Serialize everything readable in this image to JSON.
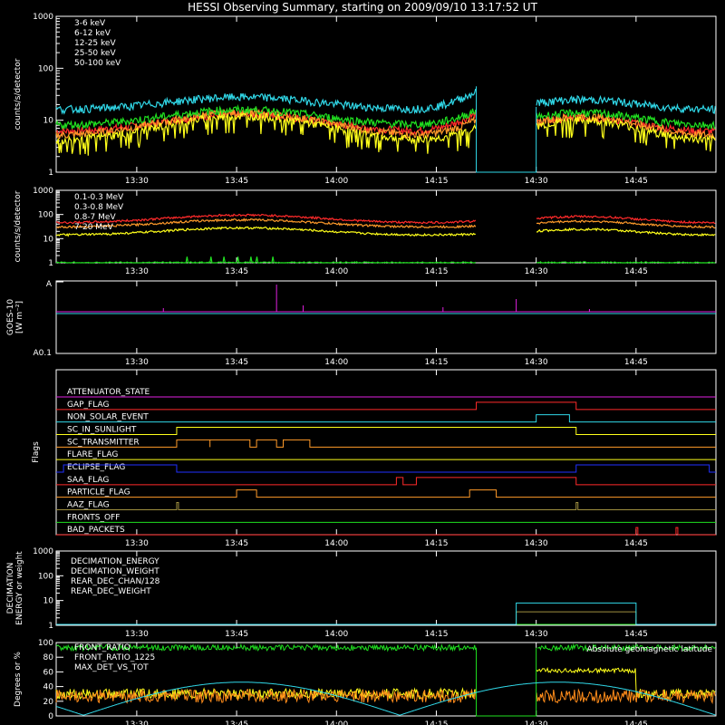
{
  "title": "HESSI Observing Summary, starting on 2009/09/10 13:17:52 UT",
  "colors": {
    "red": "#ff2a2a",
    "orange": "#ff9a2a",
    "yellow": "#ffff1a",
    "green": "#20e020",
    "cyan": "#30d8e8",
    "magenta": "#e020e0",
    "blue": "#2030ff",
    "olive": "#a09040",
    "orange2": "#ff8c1a"
  },
  "time_ticks": [
    "13:30",
    "13:45",
    "14:00",
    "14:15",
    "14:30",
    "14:45"
  ],
  "chart_data": [
    {
      "id": "low",
      "type": "line",
      "ylabel": "counts/s/detector",
      "ylim": [
        1,
        1000
      ],
      "ytick_labels": [
        "1",
        "10",
        "100",
        "1000"
      ],
      "gap": [
        "14:21",
        "14:30"
      ],
      "series": [
        {
          "name": "3-6 keV",
          "color": "red",
          "base": 6,
          "peak": 13,
          "rise": 2.2
        },
        {
          "name": "6-12 keV",
          "color": "orange",
          "base": 5,
          "peak": 14,
          "rise": 2.0
        },
        {
          "name": "12-25 keV",
          "color": "yellow",
          "base": 4,
          "peak": 12,
          "rise": 1.8
        },
        {
          "name": "25-50 keV",
          "color": "green",
          "base": 8,
          "peak": 16,
          "rise": 1.9
        },
        {
          "name": "50-100 keV",
          "color": "cyan",
          "base": 16,
          "peak": 28,
          "rise": 2.2
        }
      ]
    },
    {
      "id": "high",
      "type": "line",
      "ylabel": "counts/s/detector",
      "ylim": [
        1,
        1000
      ],
      "ytick_labels": [
        "1",
        "10",
        "100",
        "1000"
      ],
      "gap": [
        "14:21",
        "14:30"
      ],
      "series": [
        {
          "name": "0.1-0.3 MeV",
          "color": "red",
          "base": 45,
          "peak": 95,
          "rise": 1.2
        },
        {
          "name": "0.3-0.8 MeV",
          "color": "orange",
          "base": 30,
          "peak": 60,
          "rise": 1.1
        },
        {
          "name": "0.8-7 MeV",
          "color": "yellow",
          "base": 14,
          "peak": 28,
          "rise": 1.1
        },
        {
          "name": "7-20 MeV",
          "color": "green",
          "base": 1,
          "peak": 1,
          "rise": 1.0
        }
      ]
    },
    {
      "id": "goes",
      "type": "line",
      "ylabel": "GOES-10",
      "ylabel2": "[W m⁻²]",
      "ytick_labels": [
        "A",
        "A0.1"
      ]
    },
    {
      "id": "flags",
      "type": "timeline",
      "ylabel": "Flags",
      "flags": [
        {
          "name": "ATTENUATOR_STATE",
          "color": "magenta",
          "on": []
        },
        {
          "name": "GAP_FLAG",
          "color": "red",
          "on": [
            [
              "14:21",
              "14:36"
            ]
          ]
        },
        {
          "name": "NON_SOLAR_EVENT",
          "color": "cyan",
          "on": [
            [
              "14:30",
              "14:35"
            ]
          ]
        },
        {
          "name": "SC_IN_SUNLIGHT",
          "color": "yellow",
          "on": [
            [
              "13:36",
              "14:36"
            ]
          ]
        },
        {
          "name": "SC_TRANSMITTER",
          "color": "orange",
          "on": [
            [
              "13:36",
              "13:41"
            ],
            [
              "13:41",
              "13:47"
            ],
            [
              "13:48",
              "13:51"
            ],
            [
              "13:52",
              "13:56"
            ]
          ]
        },
        {
          "name": "FLARE_FLAG",
          "color": "yellow",
          "on": []
        },
        {
          "name": "ECLIPSE_FLAG",
          "color": "blue",
          "on": [
            [
              "13:19",
              "13:36"
            ],
            [
              "14:36",
              "14:56"
            ]
          ]
        },
        {
          "name": "SAA_FLAG",
          "color": "red",
          "on": [
            [
              "14:09",
              "14:10"
            ],
            [
              "14:12",
              "14:36"
            ]
          ]
        },
        {
          "name": "PARTICLE_FLAG",
          "color": "orange",
          "on": [
            [
              "13:45",
              "13:48"
            ],
            [
              "14:20",
              "14:24"
            ]
          ]
        },
        {
          "name": "AAZ_FLAG",
          "color": "olive",
          "on": [
            [
              "13:36",
              "13:36"
            ],
            [
              "14:36",
              "14:36"
            ]
          ]
        },
        {
          "name": "FRONTS_OFF",
          "color": "green",
          "on": []
        },
        {
          "name": "BAD_PACKETS",
          "color": "red",
          "on": [
            [
              "14:45",
              "14:45"
            ],
            [
              "14:51",
              "14:51"
            ]
          ]
        }
      ]
    },
    {
      "id": "decim",
      "type": "line",
      "ylabel": "DECIMATION",
      "ylabel2": "ENERGY or weight",
      "ylim": [
        1,
        1000
      ],
      "ytick_labels": [
        "1",
        "10",
        "100",
        "1000"
      ],
      "series": [
        {
          "name": "DECIMATION_ENERGY",
          "color": "green"
        },
        {
          "name": "DECIMATION_WEIGHT",
          "color": "orange"
        },
        {
          "name": "REAR_DEC_CHAN/128",
          "color": "cyan"
        },
        {
          "name": "REAR_DEC_WEIGHT",
          "color": "olive"
        }
      ]
    },
    {
      "id": "ratio",
      "type": "line",
      "ylabel": "Degrees or %",
      "ylim": [
        0,
        100
      ],
      "ytick_labels": [
        "0",
        "20",
        "40",
        "60",
        "80",
        "100"
      ],
      "annotation": "Absolute geomagnetic latitude",
      "series": [
        {
          "name": "FRONT_RATIO",
          "color": "green"
        },
        {
          "name": "FRONT_RATIO_1225",
          "color": "yellow"
        },
        {
          "name": "MAX_DET_VS_TOT",
          "color": "orange"
        }
      ]
    }
  ]
}
